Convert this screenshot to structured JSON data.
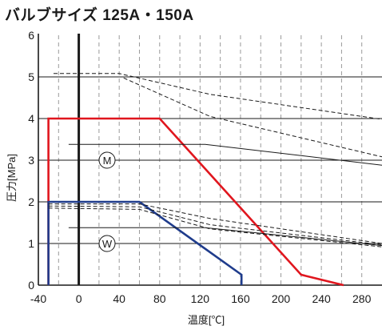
{
  "title": "バルブサイズ 125A・150A",
  "chart_data": {
    "type": "line",
    "xlabel": "温度[℃]",
    "ylabel": "圧力[MPa]",
    "xlim": [
      -40,
      300
    ],
    "ylim": [
      0,
      6
    ],
    "x_ticks": [
      "-40",
      "0",
      "40",
      "80",
      "120",
      "160",
      "200",
      "240",
      "280"
    ],
    "y_ticks": [
      "0",
      "1",
      "2",
      "3",
      "4",
      "5",
      "6"
    ],
    "grid": {
      "horizontal": true,
      "vertical_dashed_step": 20
    },
    "vertical_reference_x": 0,
    "series": [
      {
        "color": "#e0161e",
        "style": "solid",
        "width": 2.6,
        "points": [
          [
            -30,
            0
          ],
          [
            -30,
            4
          ],
          [
            80,
            4
          ],
          [
            220,
            0.25
          ],
          [
            262,
            0
          ]
        ]
      },
      {
        "color": "#1f3c8c",
        "style": "solid",
        "width": 2.6,
        "points": [
          [
            -30,
            0
          ],
          [
            -30,
            2
          ],
          [
            60,
            2
          ],
          [
            161,
            0.25
          ],
          [
            161,
            0
          ]
        ]
      },
      {
        "color": "#1a1a1a",
        "style": "solid",
        "width": 1,
        "points": [
          [
            -10,
            3.38
          ],
          [
            125,
            3.38
          ],
          [
            300,
            2.88
          ]
        ]
      },
      {
        "color": "#1a1a1a",
        "style": "dashed",
        "width": 1,
        "points": [
          [
            -25,
            5.08
          ],
          [
            40,
            5.08
          ],
          [
            130,
            4.58
          ],
          [
            300,
            3.98
          ]
        ]
      },
      {
        "color": "#1a1a1a",
        "style": "dashed",
        "width": 1,
        "points": [
          [
            -25,
            5.0
          ],
          [
            42,
            5.0
          ],
          [
            130,
            4.05
          ],
          [
            300,
            3.08
          ]
        ]
      },
      {
        "color": "#1a1a1a",
        "style": "solid",
        "width": 1,
        "points": [
          [
            -10,
            1.38
          ],
          [
            125,
            1.38
          ],
          [
            300,
            0.95
          ]
        ]
      },
      {
        "color": "#1a1a1a",
        "style": "dashed",
        "width": 1,
        "points": [
          [
            -30,
            1.95
          ],
          [
            60,
            1.95
          ],
          [
            130,
            1.6
          ],
          [
            300,
            1.0
          ]
        ]
      },
      {
        "color": "#1a1a1a",
        "style": "dashed",
        "width": 1,
        "points": [
          [
            -30,
            1.9
          ],
          [
            60,
            1.88
          ],
          [
            130,
            1.45
          ],
          [
            300,
            0.97
          ]
        ]
      },
      {
        "color": "#1a1a1a",
        "style": "dashed",
        "width": 1,
        "points": [
          [
            -30,
            1.85
          ],
          [
            60,
            1.82
          ],
          [
            130,
            1.35
          ],
          [
            300,
            0.92
          ]
        ]
      }
    ],
    "annotations": [
      {
        "label": "M",
        "x": 28,
        "y": 3.0
      },
      {
        "label": "W",
        "x": 28,
        "y": 1.0
      }
    ]
  }
}
